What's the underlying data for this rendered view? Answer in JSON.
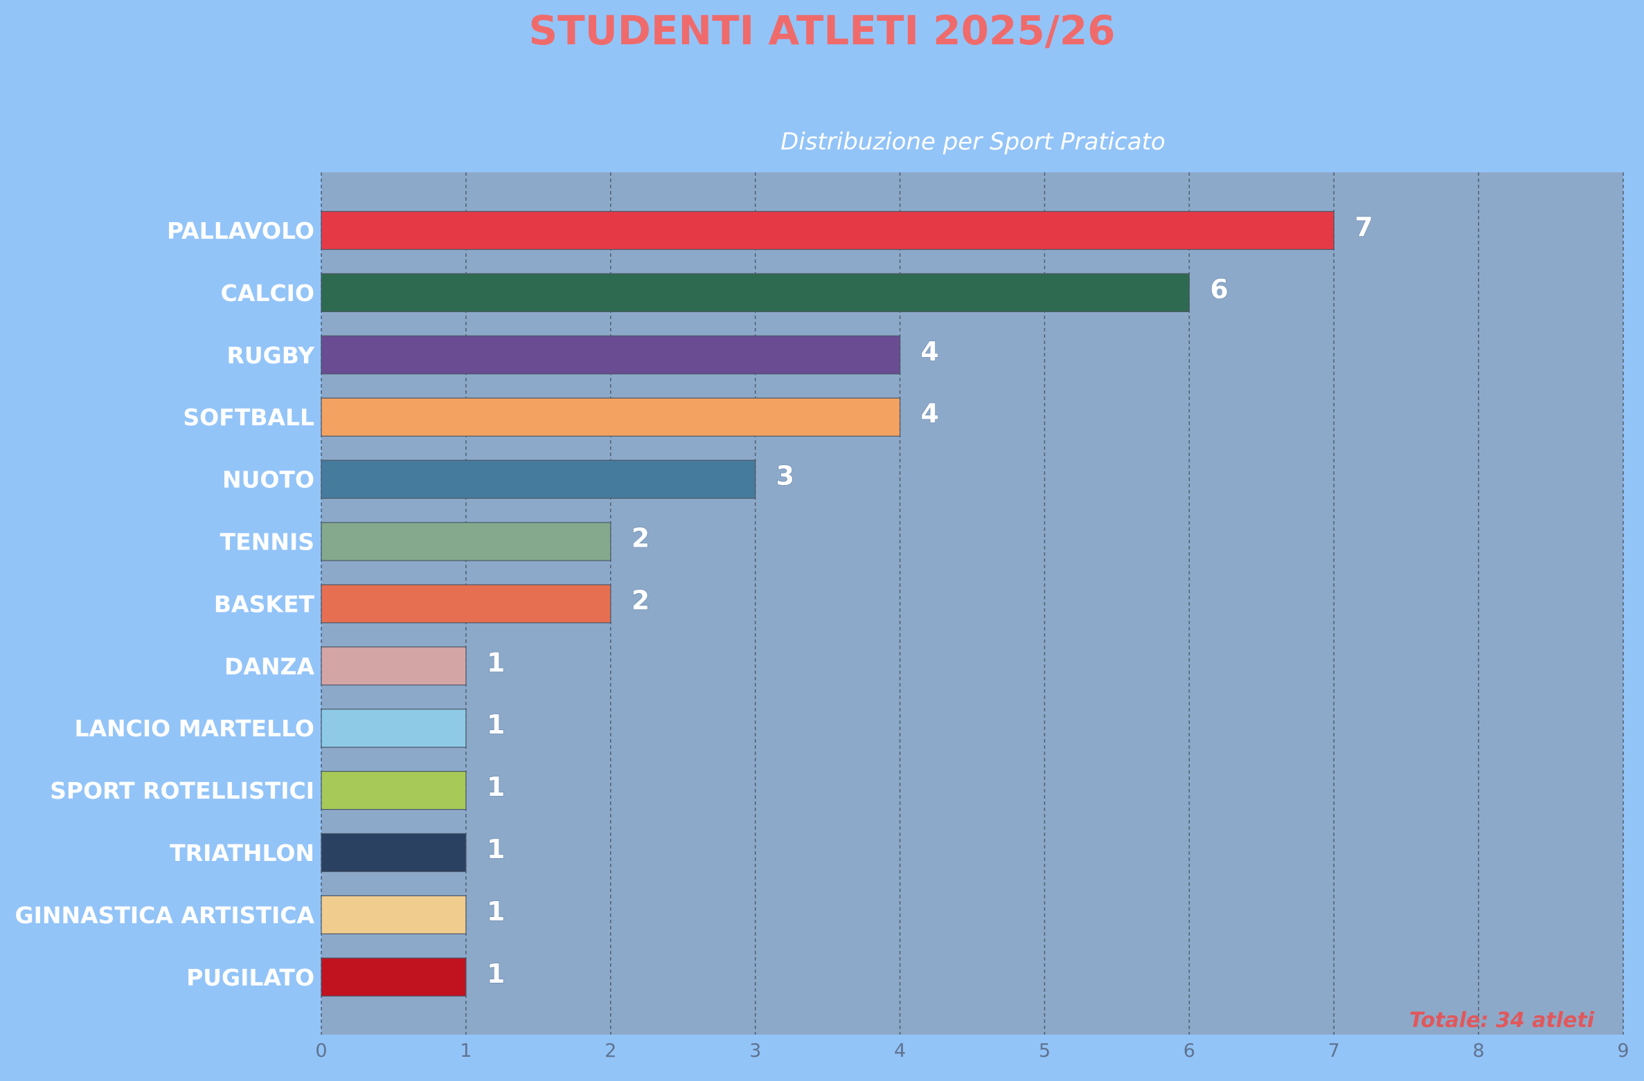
{
  "chart_data": {
    "type": "bar",
    "orientation": "horizontal",
    "title": "STUDENTI ATLETI 2025/26",
    "subtitle": "Distribuzione per Sport Praticato",
    "xlabel": "",
    "ylabel": "",
    "xlim": [
      0,
      9
    ],
    "xticks": [
      "0",
      "1",
      "2",
      "3",
      "4",
      "5",
      "6",
      "7",
      "8",
      "9"
    ],
    "grid": "vertical-dashed",
    "categories": [
      "PALLAVOLO",
      "CALCIO",
      "RUGBY",
      "SOFTBALL",
      "NUOTO",
      "TENNIS",
      "BASKET",
      "DANZA",
      "LANCIO MARTELLO",
      "SPORT ROTELLISTICI",
      "TRIATHLON",
      "GINNASTICA ARTISTICA",
      "PUGILATO"
    ],
    "values": [
      7,
      6,
      4,
      4,
      3,
      2,
      2,
      1,
      1,
      1,
      1,
      1,
      1
    ],
    "value_labels": [
      "7",
      "6",
      "4",
      "4",
      "3",
      "2",
      "2",
      "1",
      "1",
      "1",
      "1",
      "1",
      "1"
    ],
    "colors": [
      "#e63946",
      "#2d6a4f",
      "#6a4c93",
      "#f4a261",
      "#457b9d",
      "#84a98c",
      "#e76f51",
      "#d4a5a5",
      "#8ecae6",
      "#a7c957",
      "#2b4162",
      "#f0cc8f",
      "#c1121f"
    ],
    "annotation": "Totale: 34 atleti",
    "background_color": "#93c4f8",
    "plot_background_color": "#8da9c9",
    "title_color": "#ef6b6b",
    "annotation_color": "#e0585c"
  }
}
